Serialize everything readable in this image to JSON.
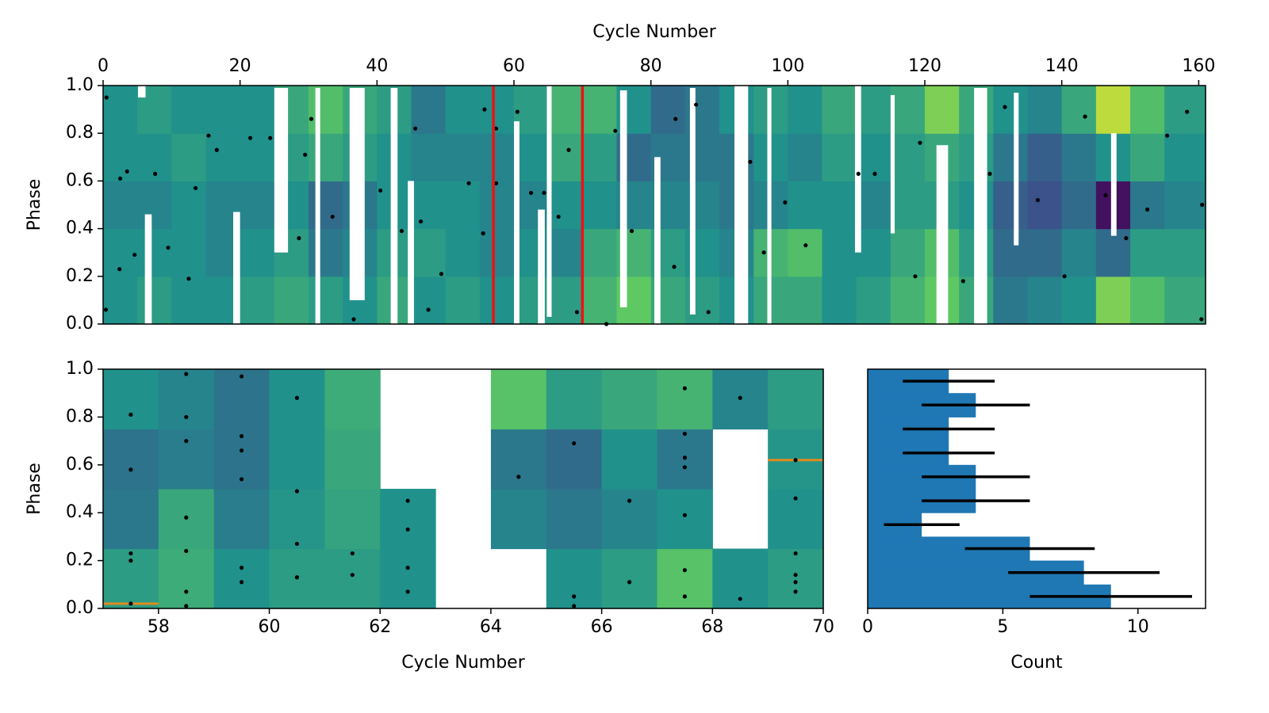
{
  "chart_data": [
    {
      "type": "heatmap",
      "xlabel": "Cycle Number",
      "ylabel": "Phase",
      "xaxis": "top",
      "xlim": [
        0,
        161
      ],
      "ylim": [
        0,
        1
      ],
      "xticks": [
        0,
        20,
        40,
        60,
        80,
        100,
        120,
        140,
        160
      ],
      "yticks": [
        {
          "value": 0,
          "label": "0.0"
        },
        {
          "value": 0.2,
          "label": "0.2"
        },
        {
          "value": 0.4,
          "label": "0.4"
        },
        {
          "value": 0.6,
          "label": "0.6"
        },
        {
          "value": 0.8,
          "label": "0.8"
        },
        {
          "value": 1,
          "label": "1.0"
        }
      ],
      "xbins": [
        0,
        5,
        10,
        15,
        20,
        25,
        30,
        35,
        40,
        45,
        50,
        55,
        60,
        65,
        70,
        75,
        80,
        85,
        90,
        95,
        100,
        105,
        110,
        115,
        120,
        125,
        130,
        135,
        140,
        145,
        150,
        155,
        161
      ],
      "ybins": [
        0,
        0.2,
        0.4,
        0.6,
        0.8,
        1
      ],
      "z": [
        [
          0.5,
          0.5,
          0.45,
          0.5,
          0.5
        ],
        [
          0.55,
          0.5,
          0.45,
          0.5,
          0.55
        ],
        [
          0.5,
          0.5,
          0.5,
          0.55,
          0.5
        ],
        [
          0.5,
          0.45,
          0.45,
          0.5,
          0.5
        ],
        [
          0.55,
          0.5,
          0.45,
          0.5,
          0.5
        ],
        [
          0.6,
          0.55,
          0.5,
          0.55,
          0.6
        ],
        [
          0.55,
          0.4,
          0.35,
          0.6,
          0.7
        ],
        [
          0.5,
          0.45,
          0.4,
          0.55,
          0.6
        ],
        [
          0.6,
          0.55,
          0.5,
          0.5,
          0.55
        ],
        [
          0.5,
          0.55,
          0.5,
          0.45,
          0.4
        ],
        [
          0.55,
          0.5,
          0.5,
          0.45,
          0.5
        ],
        [
          0.5,
          0.45,
          0.45,
          0.45,
          0.5
        ],
        [
          0.55,
          0.5,
          0.45,
          0.5,
          0.55
        ],
        [
          0.55,
          0.45,
          0.5,
          0.6,
          0.65
        ],
        [
          0.65,
          0.6,
          0.5,
          0.55,
          0.65
        ],
        [
          0.75,
          0.65,
          0.45,
          0.35,
          0.5
        ],
        [
          0.6,
          0.55,
          0.45,
          0.4,
          0.35
        ],
        [
          0.55,
          0.5,
          0.45,
          0.4,
          0.4
        ],
        [
          0.5,
          0.45,
          0.4,
          0.4,
          0.5
        ],
        [
          0.6,
          0.65,
          0.45,
          0.5,
          0.55
        ],
        [
          0.6,
          0.7,
          0.5,
          0.45,
          0.5
        ],
        [
          0.5,
          0.5,
          0.5,
          0.55,
          0.6
        ],
        [
          0.55,
          0.5,
          0.45,
          0.5,
          0.55
        ],
        [
          0.65,
          0.6,
          0.55,
          0.55,
          0.6
        ],
        [
          0.75,
          0.7,
          0.55,
          0.6,
          0.8
        ],
        [
          0.6,
          0.55,
          0.5,
          0.55,
          0.6
        ],
        [
          0.4,
          0.35,
          0.3,
          0.4,
          0.5
        ],
        [
          0.45,
          0.35,
          0.25,
          0.3,
          0.45
        ],
        [
          0.5,
          0.45,
          0.35,
          0.4,
          0.6
        ],
        [
          0.8,
          0.35,
          0.05,
          0.5,
          0.9
        ],
        [
          0.7,
          0.55,
          0.4,
          0.6,
          0.7
        ],
        [
          0.6,
          0.55,
          0.45,
          0.5,
          0.55
        ]
      ],
      "gaps": [
        [
          5.1,
          6.2,
          0.95,
          1
        ],
        [
          6.1,
          7.1,
          0,
          0.46
        ],
        [
          19,
          20,
          0,
          0.47
        ],
        [
          25,
          27,
          0.3,
          0.99
        ],
        [
          31,
          31.7,
          0,
          0.99
        ],
        [
          36,
          38.2,
          0.1,
          0.99
        ],
        [
          42,
          43,
          0,
          0.99
        ],
        [
          44.5,
          45.4,
          0,
          0.6
        ],
        [
          60,
          60.8,
          0,
          0.85
        ],
        [
          63.5,
          64.5,
          0,
          0.48
        ],
        [
          64.8,
          65.5,
          0.03,
          1
        ],
        [
          75.5,
          76.5,
          0.07,
          0.98
        ],
        [
          80.5,
          81.4,
          0,
          0.7
        ],
        [
          85.7,
          86.5,
          0.04,
          0.99
        ],
        [
          92.2,
          94.2,
          0,
          1
        ],
        [
          97,
          97.6,
          0,
          0.99
        ],
        [
          109.8,
          110.7,
          0.3,
          1
        ],
        [
          115,
          115.6,
          0.38,
          0.96
        ],
        [
          121.7,
          123.4,
          0,
          0.75
        ],
        [
          127.2,
          129.1,
          0,
          0.99
        ],
        [
          133,
          133.7,
          0.33,
          0.97
        ],
        [
          147.2,
          148,
          0.37,
          0.8
        ]
      ],
      "vlines": [
        57,
        70
      ],
      "vline_color": "#ee1111",
      "dots": {
        "color": "#000000",
        "x": [
          0.5,
          0.4,
          2.5,
          2.4,
          3.5,
          4.6,
          7.6,
          9.5,
          12.5,
          13.5,
          15.4,
          16.6,
          21.5,
          24.4,
          28.6,
          29.5,
          30.4,
          33.5,
          36.6,
          40.5,
          43.6,
          45.6,
          46.4,
          47.5,
          49.4,
          53.4,
          55.5,
          55.7,
          57.4,
          57.4,
          60.5,
          62.5,
          64.4,
          66.5,
          68,
          69.2,
          73.5,
          74.8,
          77.2,
          83.4,
          83.6,
          86.6,
          88.4,
          94.5,
          96.5,
          99.6,
          102.6,
          110.3,
          112.7,
          118.6,
          119.3,
          125.6,
          129.5,
          131.7,
          136.5,
          140.4,
          143.4,
          146.4,
          149.4,
          152.5,
          155.4,
          158.3,
          160.5,
          160.4
        ],
        "y": [
          0.95,
          0.06,
          0.61,
          0.23,
          0.64,
          0.29,
          0.63,
          0.32,
          0.19,
          0.57,
          0.79,
          0.73,
          0.78,
          0.78,
          0.36,
          0.71,
          0.86,
          0.45,
          0.02,
          0.56,
          0.39,
          0.82,
          0.43,
          0.06,
          0.21,
          0.59,
          0.38,
          0.9,
          0.82,
          0.59,
          0.89,
          0.55,
          0.55,
          0.45,
          0.73,
          0.05,
          0,
          0.81,
          0.39,
          0.24,
          0.86,
          0.92,
          0.05,
          0.68,
          0.3,
          0.51,
          0.33,
          0.63,
          0.63,
          0.2,
          0.76,
          0.18,
          0.63,
          0.91,
          0.52,
          0.2,
          0.87,
          0.54,
          0.36,
          0.48,
          0.79,
          0.89,
          0.5,
          0.02
        ]
      }
    },
    {
      "type": "heatmap",
      "xlabel": "Cycle Number",
      "ylabel": "Phase",
      "xaxis": "bottom",
      "xlim": [
        57,
        70
      ],
      "ylim": [
        0,
        1
      ],
      "xticks": [
        58,
        60,
        62,
        64,
        66,
        68,
        70
      ],
      "yticks": [
        {
          "value": 0,
          "label": "0.0"
        },
        {
          "value": 0.2,
          "label": "0.2"
        },
        {
          "value": 0.4,
          "label": "0.4"
        },
        {
          "value": 0.6,
          "label": "0.6"
        },
        {
          "value": 0.8,
          "label": "0.8"
        },
        {
          "value": 1,
          "label": "1.0"
        }
      ],
      "xbins": [
        57,
        58,
        59,
        60,
        61,
        62,
        63,
        64,
        65,
        66,
        67,
        68,
        69,
        70
      ],
      "ybins": [
        0,
        0.25,
        0.5,
        0.75,
        1
      ],
      "z": [
        [
          0.55,
          0.4,
          0.38,
          0.5
        ],
        [
          0.62,
          0.6,
          0.42,
          0.45
        ],
        [
          0.5,
          0.42,
          0.38,
          0.38
        ],
        [
          0.55,
          0.52,
          0.5,
          0.5
        ],
        [
          0.55,
          0.58,
          0.6,
          0.62
        ],
        [
          0.5,
          0.5,
          null,
          null
        ],
        [
          null,
          null,
          null,
          null
        ],
        [
          null,
          0.45,
          0.4,
          0.72
        ],
        [
          0.5,
          0.4,
          0.35,
          0.55
        ],
        [
          0.55,
          0.45,
          0.5,
          0.6
        ],
        [
          0.72,
          0.5,
          0.4,
          0.65
        ],
        [
          0.5,
          null,
          null,
          0.45
        ],
        [
          0.55,
          0.5,
          0.52,
          0.55
        ]
      ],
      "highlights": {
        "color": "#e08a1e",
        "segments": [
          [
            57,
            58,
            0.02
          ],
          [
            69,
            70,
            0.62
          ]
        ]
      },
      "dots": {
        "color": "#000000",
        "x": [
          57.5,
          57.5,
          57.5,
          57.5,
          57.5,
          58.5,
          58.5,
          58.5,
          58.5,
          58.5,
          58.5,
          58.5,
          59.5,
          59.5,
          59.5,
          59.5,
          59.5,
          59.5,
          60.5,
          60.5,
          60.5,
          60.5,
          61.5,
          61.5,
          62.5,
          62.5,
          62.5,
          62.5,
          64.5,
          65.5,
          65.5,
          65.5,
          66.5,
          66.5,
          67.5,
          67.5,
          67.5,
          67.5,
          67.5,
          67.5,
          67.5,
          68.5,
          68.5,
          69.5,
          69.5,
          69.5,
          69.5,
          69.5,
          69.5
        ],
        "y": [
          0.81,
          0.58,
          0.23,
          0.2,
          0.02,
          0.98,
          0.8,
          0.7,
          0.38,
          0.24,
          0.07,
          0.01,
          0.97,
          0.72,
          0.66,
          0.54,
          0.17,
          0.11,
          0.88,
          0.49,
          0.27,
          0.13,
          0.23,
          0.14,
          0.45,
          0.33,
          0.17,
          0.07,
          0.55,
          0.69,
          0.05,
          0.01,
          0.45,
          0.11,
          0.92,
          0.73,
          0.63,
          0.59,
          0.39,
          0.16,
          0.05,
          0.88,
          0.04,
          0.62,
          0.46,
          0.23,
          0.14,
          0.11,
          0.07
        ]
      }
    },
    {
      "type": "histogram",
      "xlabel": "Count",
      "orientation": "horizontal",
      "color": "#1f77b4",
      "error_color": "#000000",
      "xlim": [
        0,
        12.5
      ],
      "ylim": [
        0,
        1
      ],
      "xticks": [
        0,
        5,
        10
      ],
      "bins": [
        0,
        0.1,
        0.2,
        0.3,
        0.4,
        0.5,
        0.6,
        0.7,
        0.8,
        0.9,
        1
      ],
      "values": [
        9,
        8,
        6,
        2,
        4,
        4,
        3,
        3,
        4,
        3
      ],
      "errors": [
        3,
        2.8,
        2.4,
        1.4,
        2,
        2,
        1.7,
        1.7,
        2,
        1.7
      ]
    }
  ]
}
